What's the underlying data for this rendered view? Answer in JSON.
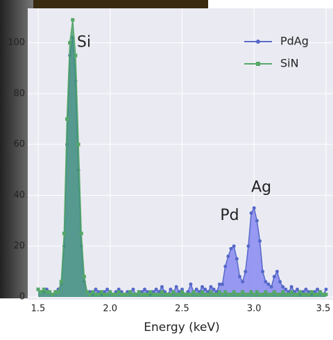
{
  "chart_data": {
    "type": "line",
    "x_label": "Energy (keV)",
    "x": [
      1.5,
      1.52,
      1.54,
      1.56,
      1.58,
      1.6,
      1.62,
      1.64,
      1.66,
      1.68,
      1.7,
      1.72,
      1.74,
      1.76,
      1.78,
      1.8,
      1.82,
      1.84,
      1.86,
      1.88,
      1.9,
      1.92,
      1.94,
      1.96,
      1.98,
      2.0,
      2.02,
      2.04,
      2.06,
      2.08,
      2.1,
      2.12,
      2.14,
      2.16,
      2.18,
      2.2,
      2.22,
      2.24,
      2.26,
      2.28,
      2.3,
      2.32,
      2.34,
      2.36,
      2.38,
      2.4,
      2.42,
      2.44,
      2.46,
      2.48,
      2.5,
      2.52,
      2.54,
      2.56,
      2.58,
      2.6,
      2.62,
      2.64,
      2.66,
      2.68,
      2.7,
      2.72,
      2.74,
      2.76,
      2.78,
      2.8,
      2.82,
      2.84,
      2.86,
      2.88,
      2.9,
      2.92,
      2.94,
      2.96,
      2.98,
      3.0,
      3.02,
      3.04,
      3.06,
      3.08,
      3.1,
      3.12,
      3.14,
      3.16,
      3.18,
      3.2,
      3.22,
      3.24,
      3.26,
      3.28,
      3.3,
      3.32,
      3.34,
      3.36,
      3.38,
      3.4,
      3.42,
      3.44,
      3.46,
      3.48,
      3.5
    ],
    "series": [
      {
        "name": "PdAg",
        "color": "#5568c8",
        "fill": "#7b7cf0",
        "marker": "circle",
        "values": [
          3,
          2,
          2,
          3,
          2,
          1,
          2,
          3,
          5,
          20,
          60,
          95,
          102,
          85,
          50,
          20,
          6,
          2,
          2,
          1,
          3,
          2,
          1,
          2,
          3,
          2,
          1,
          2,
          3,
          2,
          1,
          2,
          2,
          3,
          1,
          2,
          2,
          3,
          2,
          1,
          2,
          3,
          2,
          4,
          2,
          1,
          3,
          2,
          4,
          2,
          3,
          1,
          2,
          5,
          2,
          3,
          2,
          4,
          3,
          2,
          4,
          3,
          2,
          5,
          5,
          12,
          16,
          19,
          20,
          15,
          8,
          6,
          10,
          20,
          33,
          35,
          30,
          22,
          10,
          6,
          5,
          4,
          8,
          10,
          6,
          4,
          3,
          2,
          4,
          2,
          3,
          1,
          2,
          3,
          2,
          1,
          2,
          3,
          2,
          1,
          3
        ]
      },
      {
        "name": "SiN",
        "color": "#55a868",
        "fill": "#3f9a6e",
        "marker": "square",
        "values": [
          3,
          2,
          3,
          2,
          2,
          1,
          2,
          2,
          6,
          25,
          70,
          100,
          109,
          95,
          60,
          25,
          8,
          2,
          1,
          2,
          1,
          1,
          2,
          1,
          1,
          2,
          1,
          1,
          2,
          1,
          1,
          1,
          2,
          1,
          1,
          2,
          1,
          1,
          1,
          2,
          1,
          1,
          1,
          2,
          1,
          1,
          1,
          2,
          1,
          1,
          2,
          1,
          1,
          1,
          2,
          1,
          1,
          2,
          1,
          1,
          2,
          1,
          1,
          2,
          1,
          2,
          1,
          1,
          2,
          1,
          1,
          2,
          1,
          1,
          2,
          1,
          2,
          1,
          1,
          2,
          1,
          1,
          2,
          1,
          1,
          2,
          1,
          1,
          2,
          1,
          1,
          2,
          1,
          1,
          1,
          2,
          1,
          1,
          2,
          1,
          1
        ]
      }
    ],
    "xlim": [
      1.5,
      3.5
    ],
    "xticks": [
      1.5,
      {
        "value": 2.0,
        "label": "2.0"
      },
      2.5,
      {
        "value": 3.0,
        "label": "3.0"
      },
      3.5
    ],
    "ylim": [
      0,
      110
    ],
    "yticks": [
      0,
      20,
      40,
      60,
      80,
      100
    ],
    "grid": true,
    "legend": "upper right",
    "annotations": [
      "Si",
      "Pd",
      "Ag"
    ]
  }
}
